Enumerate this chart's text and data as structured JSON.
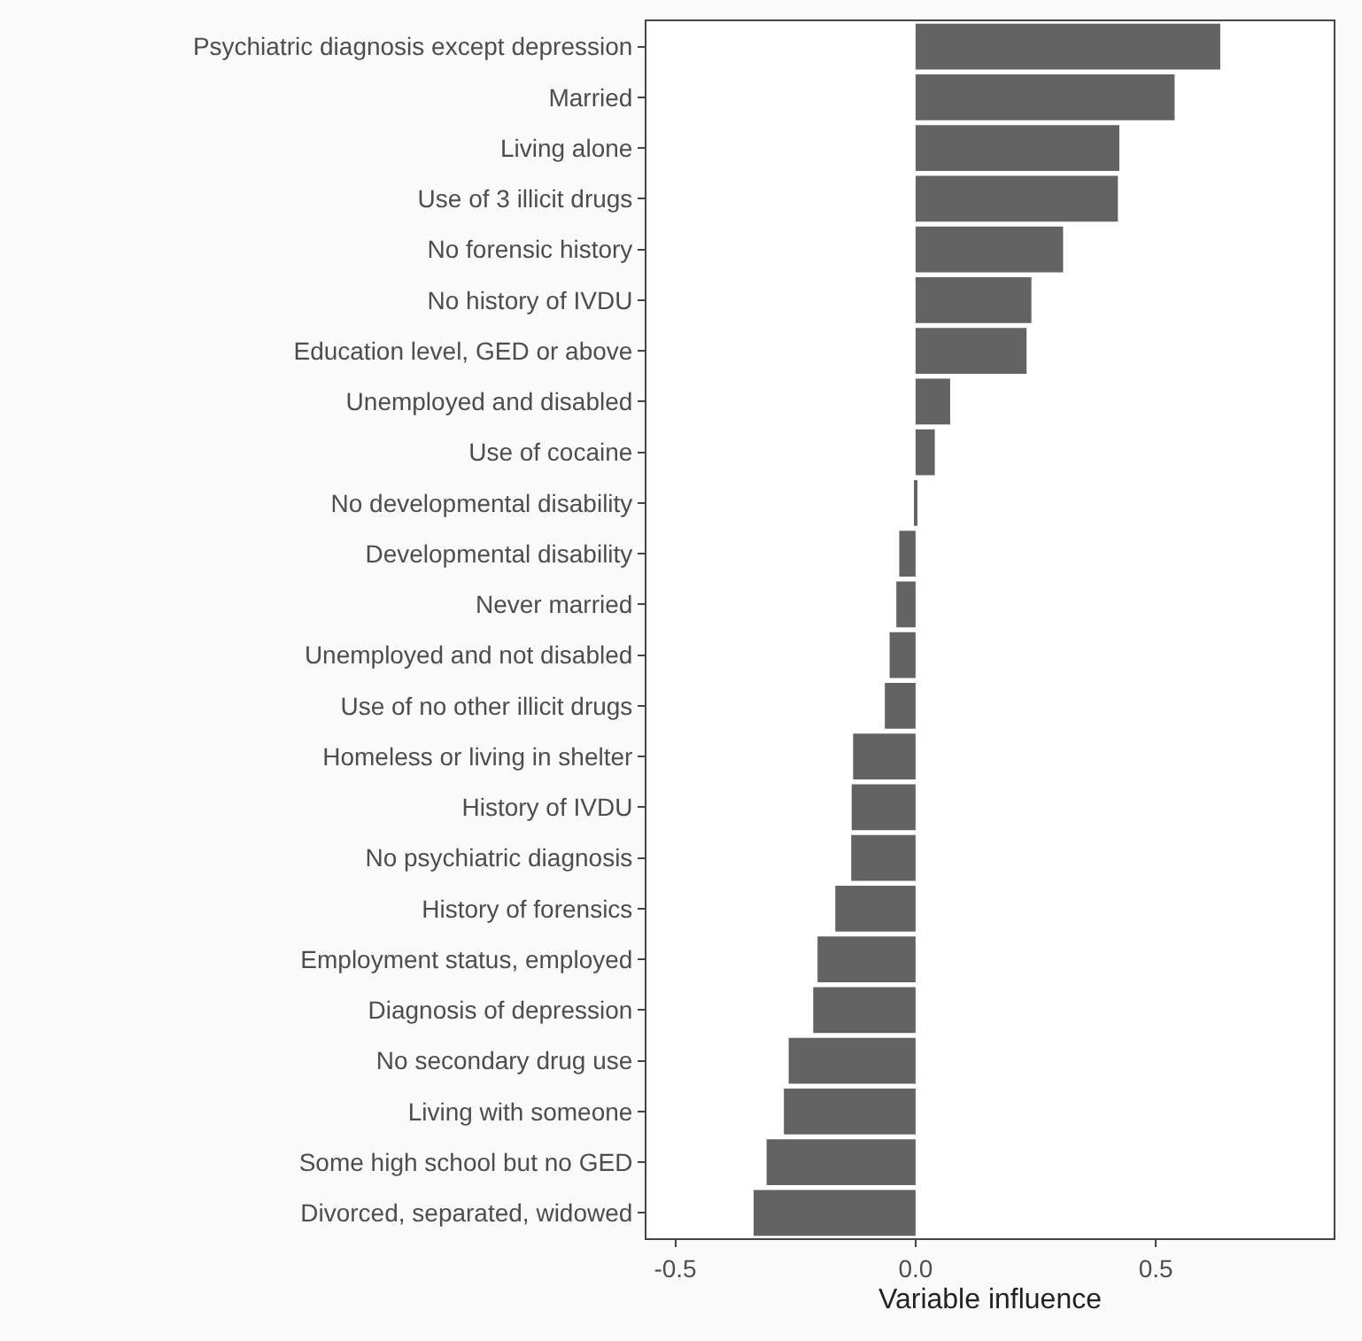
{
  "chart_data": {
    "type": "bar",
    "orientation": "horizontal",
    "xlabel": "Variable influence",
    "categories": [
      "Psychiatric diagnosis except depression",
      "Married",
      "Living alone",
      "Use of 3 illicit drugs",
      "No forensic history",
      "No history of IVDU",
      "Education level, GED or above",
      "Unemployed and disabled",
      "Use of cocaine",
      "No developmental disability",
      "Developmental disability",
      "Never married",
      "Unemployed and not disabled",
      "Use of no other illicit drugs",
      "Homeless or living in shelter",
      "History of IVDU",
      "No psychiatric diagnosis",
      "History of forensics",
      "Employment status, employed",
      "Diagnosis of depression",
      "No secondary drug use",
      "Living with someone",
      "Some high school but no GED",
      "Divorced, separated, widowed"
    ],
    "values": [
      0.634,
      0.539,
      0.424,
      0.421,
      0.307,
      0.241,
      0.231,
      0.072,
      0.04,
      0.002,
      -0.034,
      -0.04,
      -0.054,
      -0.064,
      -0.13,
      -0.133,
      -0.134,
      -0.167,
      -0.204,
      -0.213,
      -0.264,
      -0.274,
      -0.31,
      -0.337
    ],
    "color": "#636363",
    "xlim": [
      -0.56,
      0.87
    ],
    "xticks": [
      {
        "value": -0.5,
        "label": "-0.5"
      },
      {
        "value": 0,
        "label": "0.0"
      },
      {
        "value": 0.5,
        "label": "0.5"
      }
    ],
    "legend": false
  }
}
